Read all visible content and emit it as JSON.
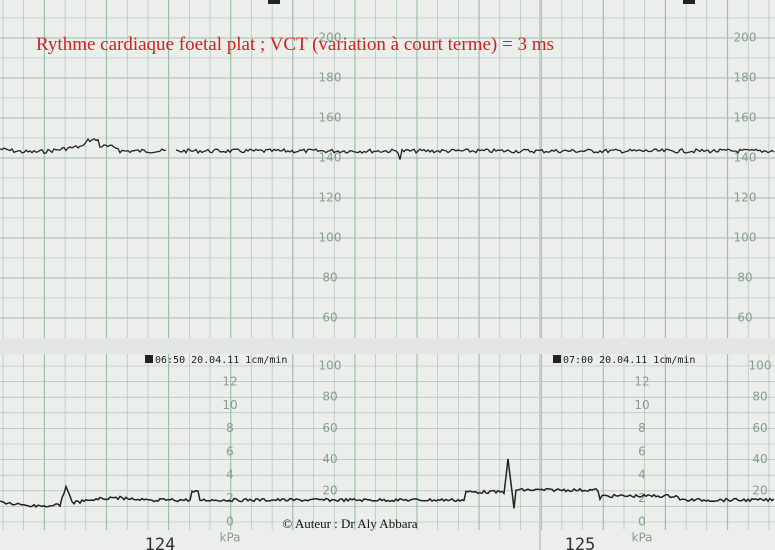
{
  "title": "Rythme cardiaque foetal plat ; VCT (variation à court terme) = 3 ms",
  "fhr_scale": [
    200,
    180,
    160,
    140,
    120,
    100,
    80,
    60
  ],
  "toco_scale": [
    100,
    80,
    60,
    40,
    20
  ],
  "kpa_scale": [
    12,
    10,
    8,
    6,
    4,
    2,
    0
  ],
  "kpa_unit": "kPa",
  "stamps": [
    "06:50  20.04.11  1cm/min",
    "07:00  20.04.11  1cm/min"
  ],
  "pages": [
    "124",
    "125"
  ],
  "copyright": "© Auteur : Dr Aly Abbara"
}
